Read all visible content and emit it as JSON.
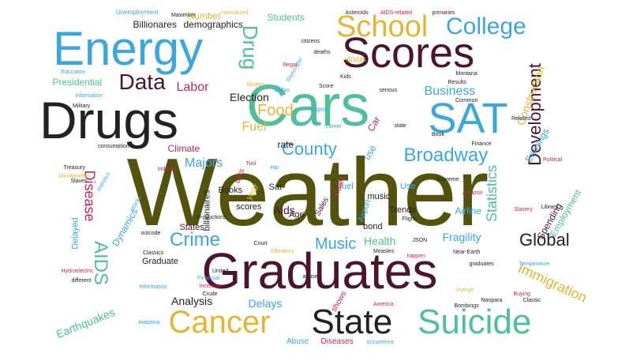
{
  "palette": {
    "olive": "#54530e",
    "maroon": "#4b1530",
    "teal": "#4fbf9c",
    "sky": "#3aa7df",
    "gold": "#e3b533",
    "dark": "#222222",
    "crimson": "#c8245a"
  },
  "words": [
    {
      "text": "Weather",
      "color": "olive"
    },
    {
      "text": "Graduates",
      "color": "maroon"
    },
    {
      "text": "Cars",
      "color": "teal"
    },
    {
      "text": "Drugs",
      "color": "dark"
    },
    {
      "text": "Energy",
      "color": "sky"
    },
    {
      "text": "Scores",
      "color": "maroon"
    },
    {
      "text": "SAT",
      "color": "sky"
    },
    {
      "text": "State",
      "color": "dark"
    },
    {
      "text": "Suicide",
      "color": "teal"
    },
    {
      "text": "Cancer",
      "color": "gold"
    },
    {
      "text": "School",
      "color": "gold"
    },
    {
      "text": "College",
      "color": "sky"
    },
    {
      "text": "Data",
      "color": "maroon"
    },
    {
      "text": "Drug",
      "color": "teal"
    },
    {
      "text": "Broadway",
      "color": "sky"
    },
    {
      "text": "Development",
      "color": "maroon"
    },
    {
      "text": "County",
      "color": "sky"
    },
    {
      "text": "AIDS",
      "color": "teal"
    },
    {
      "text": "Crime",
      "color": "sky"
    },
    {
      "text": "Music",
      "color": "sky"
    },
    {
      "text": "Global",
      "color": "dark"
    },
    {
      "text": "Immigration",
      "color": "gold"
    },
    {
      "text": "Statistics",
      "color": "teal"
    },
    {
      "text": "Disease",
      "color": "crimson"
    },
    {
      "text": "Food",
      "color": "gold"
    },
    {
      "text": "Fuel",
      "color": "gold"
    },
    {
      "text": "Business",
      "color": "sky"
    },
    {
      "text": "Labor",
      "color": "crimson"
    },
    {
      "text": "Majors",
      "color": "sky"
    },
    {
      "text": "Election",
      "color": "dark"
    },
    {
      "text": "Health",
      "color": "teal"
    },
    {
      "text": "Fragility",
      "color": "sky"
    },
    {
      "text": "Analysis",
      "color": "dark"
    },
    {
      "text": "Earthquakes",
      "color": "teal"
    },
    {
      "text": "Delays",
      "color": "sky"
    },
    {
      "text": "Aids",
      "color": "maroon"
    },
    {
      "text": "Construction",
      "color": "gold"
    },
    {
      "text": "Earnings",
      "color": "sky"
    },
    {
      "text": "Employment",
      "color": "teal"
    },
    {
      "text": "Spending",
      "color": "maroon"
    },
    {
      "text": "Airline",
      "color": "sky"
    },
    {
      "text": "Dynamics",
      "color": "sky"
    },
    {
      "text": "Presidential",
      "color": "teal"
    },
    {
      "text": "Billionares",
      "color": "dark"
    },
    {
      "text": "demographics",
      "color": "dark"
    },
    {
      "text": "Number",
      "color": "gold"
    },
    {
      "text": "Students",
      "color": "teal"
    },
    {
      "text": "Climate",
      "color": "crimson"
    },
    {
      "text": "rate",
      "color": "dark"
    },
    {
      "text": "Car",
      "color": "crimson"
    },
    {
      "text": "use",
      "color": "sky"
    },
    {
      "text": "Books",
      "color": "dark"
    },
    {
      "text": "Sat",
      "color": "dark"
    },
    {
      "text": "year",
      "color": "gold"
    },
    {
      "text": "fuel",
      "color": "sky"
    },
    {
      "text": "Use",
      "color": "sky"
    },
    {
      "text": "music",
      "color": "dark"
    },
    {
      "text": "Age",
      "color": "dark"
    },
    {
      "text": "Trends",
      "color": "dark"
    },
    {
      "text": "bond",
      "color": "dark"
    },
    {
      "text": "scores",
      "color": "dark"
    },
    {
      "text": "billionaires",
      "color": "dark"
    },
    {
      "text": "States",
      "color": "maroon"
    },
    {
      "text": "Graduate",
      "color": "dark"
    },
    {
      "text": "Delayed",
      "color": "sky"
    },
    {
      "text": "Abuse",
      "color": "sky"
    },
    {
      "text": "Diseases",
      "color": "crimson"
    },
    {
      "text": "shows",
      "color": "crimson"
    },
    {
      "text": "Sales",
      "color": "maroon"
    },
    {
      "text": "Airport",
      "color": "sky"
    },
    {
      "text": "Rates",
      "color": "crimson"
    },
    {
      "text": "drugs",
      "color": "gold"
    },
    {
      "text": "cars",
      "color": "crimson"
    },
    {
      "text": "Unemployment",
      "color": "sky"
    },
    {
      "text": "Maximum",
      "color": "dark"
    },
    {
      "text": "naturalized",
      "color": "gold"
    },
    {
      "text": "Asteroids",
      "color": "maroon"
    },
    {
      "text": "AIDS-related",
      "color": "crimson"
    },
    {
      "text": "primaries",
      "color": "maroon"
    },
    {
      "text": "Education",
      "color": "sky"
    },
    {
      "text": "information",
      "color": "sky"
    },
    {
      "text": "Military",
      "color": "dark"
    },
    {
      "text": "consumption",
      "color": "dark"
    },
    {
      "text": "Industry",
      "color": "crimson"
    },
    {
      "text": "Treasury",
      "color": "dark"
    },
    {
      "text": "MiniWeather",
      "color": "gold"
    },
    {
      "text": "Slaves",
      "color": "dark"
    },
    {
      "text": "Hydroelectric",
      "color": "crimson"
    },
    {
      "text": "different",
      "color": "dark"
    },
    {
      "text": "Alabama",
      "color": "sky"
    },
    {
      "text": "America",
      "color": "crimson"
    },
    {
      "text": "occurrence",
      "color": "sky"
    },
    {
      "text": "Bombings",
      "color": "dark"
    },
    {
      "text": "Classic",
      "color": "dark"
    },
    {
      "text": "Supreme",
      "color": "dark"
    },
    {
      "text": "Library",
      "color": "dark"
    },
    {
      "text": "Slavery",
      "color": "crimson"
    },
    {
      "text": "Finance",
      "color": "dark"
    },
    {
      "text": "Results",
      "color": "dark"
    },
    {
      "text": "Common",
      "color": "dark"
    },
    {
      "text": "Related",
      "color": "dark"
    },
    {
      "text": "Political",
      "color": "crimson"
    },
    {
      "text": "Near-Earth",
      "color": "dark"
    },
    {
      "text": "Temperature",
      "color": "sky"
    },
    {
      "text": "Measles",
      "color": "dark"
    },
    {
      "text": "Crude",
      "color": "dark"
    },
    {
      "text": "United",
      "color": "dark"
    },
    {
      "text": "Financial",
      "color": "sky"
    },
    {
      "text": "citizens",
      "color": "dark"
    },
    {
      "text": "Flights",
      "color": "sky"
    },
    {
      "text": "Book",
      "color": "dark"
    },
    {
      "text": "Amazon",
      "color": "crimson"
    },
    {
      "text": "Montana",
      "color": "dark"
    },
    {
      "text": "serious",
      "color": "dark"
    },
    {
      "text": "happen",
      "color": "crimson"
    },
    {
      "text": "Buying",
      "color": "crimson"
    },
    {
      "text": "Classics",
      "color": "dark"
    },
    {
      "text": "Information",
      "color": "sky"
    },
    {
      "text": "Productions",
      "color": "dark"
    },
    {
      "text": "Dallas",
      "color": "sky"
    },
    {
      "text": "deaths",
      "color": "dark"
    },
    {
      "text": "Models",
      "color": "gold"
    },
    {
      "text": "Court",
      "color": "dark"
    },
    {
      "text": "Efficiency",
      "color": "gold"
    },
    {
      "text": "abuse",
      "color": "dark"
    },
    {
      "text": "graduates",
      "color": "dark"
    },
    {
      "text": "statistics",
      "color": "sky"
    },
    {
      "text": "attacks",
      "color": "sky"
    },
    {
      "text": "outcode",
      "color": "dark"
    },
    {
      "text": "Increase",
      "color": "crimson"
    },
    {
      "text": "Nanpara",
      "color": "dark"
    },
    {
      "text": "change",
      "color": "gold"
    },
    {
      "text": "Score",
      "color": "dark"
    },
    {
      "text": "Kids",
      "color": "dark"
    },
    {
      "text": "Hip",
      "color": "sky"
    },
    {
      "text": "Tool",
      "color": "crimson"
    },
    {
      "text": "JSON",
      "color": "dark"
    },
    {
      "text": "Flight",
      "color": "dark"
    },
    {
      "text": "Skyscraper",
      "color": "sky"
    },
    {
      "text": "Illegal",
      "color": "crimson"
    },
    {
      "text": "state",
      "color": "dark"
    },
    {
      "text": "career",
      "color": "sky"
    }
  ]
}
